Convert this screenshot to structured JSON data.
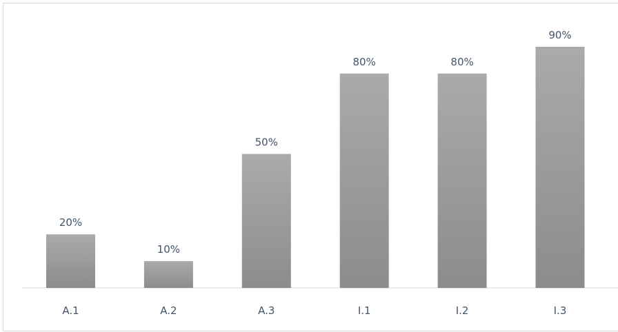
{
  "chart_data": {
    "type": "bar",
    "title": "",
    "xlabel": "",
    "ylabel": "",
    "categories": [
      "A.1",
      "A.2",
      "A.3",
      "I.1",
      "I.2",
      "I.3"
    ],
    "values": [
      20,
      10,
      50,
      80,
      80,
      90
    ],
    "value_labels": [
      "20%",
      "10%",
      "50%",
      "80%",
      "80%",
      "90%"
    ],
    "ylim": [
      0,
      100
    ],
    "grid": false,
    "legend": "none",
    "colors": {
      "bar_top": "#aaaaaa",
      "bar_bottom": "#8c8c8c",
      "label_text": "#44546a",
      "baseline": "#d9d9d9"
    }
  }
}
